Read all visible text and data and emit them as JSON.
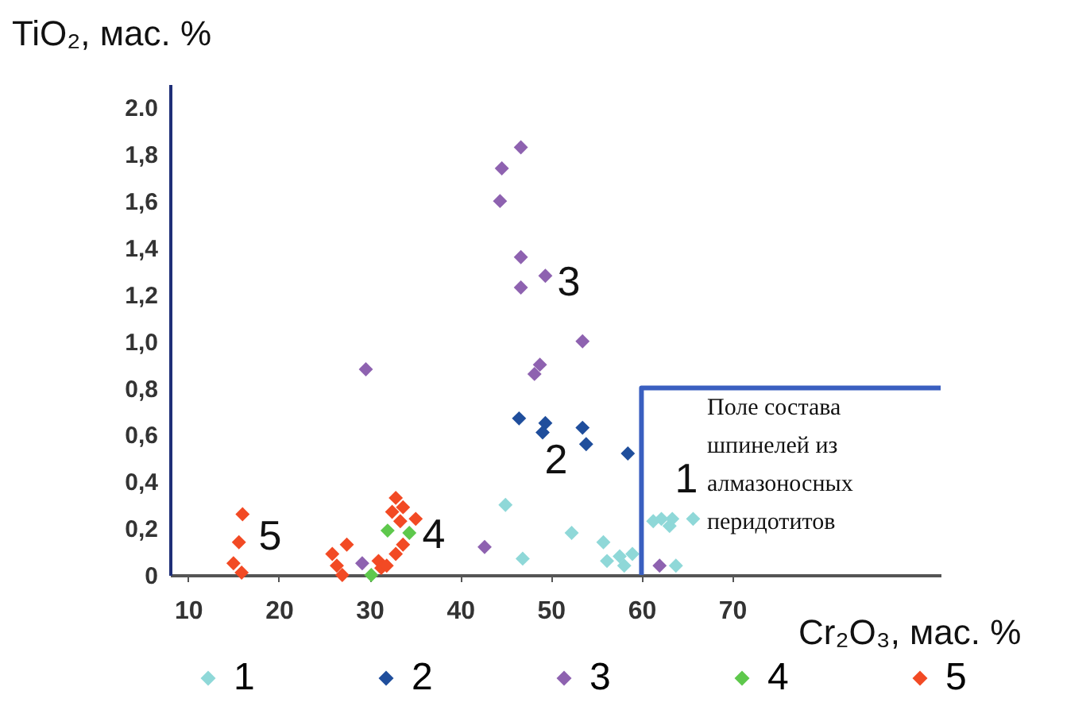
{
  "chart_data": {
    "type": "scatter",
    "xlabel": "Cr₂O₃, мас. %",
    "ylabel": "TiO₂, мас. %",
    "xlim": [
      8,
      93
    ],
    "ylim": [
      0,
      2.1
    ],
    "xticks": [
      10,
      20,
      30,
      40,
      50,
      60,
      70
    ],
    "yticks": [
      {
        "value": 0,
        "label": "0"
      },
      {
        "value": 0.2,
        "label": "0,2"
      },
      {
        "value": 0.4,
        "label": "0,4"
      },
      {
        "value": 0.6,
        "label": "0,6"
      },
      {
        "value": 0.8,
        "label": "0,8"
      },
      {
        "value": 1.0,
        "label": "1,0"
      },
      {
        "value": 1.2,
        "label": "1,2"
      },
      {
        "value": 1.4,
        "label": "1,4"
      },
      {
        "value": 1.6,
        "label": "1,6"
      },
      {
        "value": 1.8,
        "label": "1,8"
      },
      {
        "value": 2.0,
        "label": "2.0"
      }
    ],
    "marker": "diamond",
    "legend": "bottom",
    "series": [
      {
        "name": "1",
        "color": "#8fd8d8",
        "x": [
          45.0,
          46.9,
          52.3,
          55.8,
          56.2,
          57.6,
          59.0,
          58.1,
          62.2,
          63.4,
          63.1,
          65.7,
          63.8,
          61.3
        ],
        "values": [
          0.3,
          0.07,
          0.18,
          0.14,
          0.06,
          0.08,
          0.09,
          0.04,
          0.24,
          0.24,
          0.21,
          0.24,
          0.04,
          0.23
        ]
      },
      {
        "name": "2",
        "color": "#1f4e9c",
        "x": [
          46.5,
          49.4,
          49.1,
          53.5,
          53.9,
          58.5
        ],
        "values": [
          0.67,
          0.65,
          0.61,
          0.63,
          0.56,
          0.52
        ]
      },
      {
        "name": "3",
        "color": "#8e62b0",
        "x": [
          46.7,
          44.6,
          44.4,
          46.7,
          46.7,
          49.4,
          53.5,
          48.8,
          48.2,
          29.6,
          42.7,
          29.2,
          62.0
        ],
        "values": [
          1.83,
          1.74,
          1.6,
          1.36,
          1.23,
          1.28,
          1.0,
          0.9,
          0.86,
          0.88,
          0.12,
          0.05,
          0.04
        ]
      },
      {
        "name": "4",
        "color": "#5ec84c",
        "x": [
          32.0,
          34.4,
          30.2
        ],
        "values": [
          0.19,
          0.18,
          0.0
        ]
      },
      {
        "name": "5",
        "color": "#f24a24",
        "x": [
          16.0,
          15.6,
          15.0,
          15.9,
          27.5,
          25.9,
          26.4,
          27.0,
          31.0,
          31.3,
          32.9,
          32.5,
          33.7,
          35.1,
          33.7,
          32.9,
          31.9,
          33.4
        ],
        "values": [
          0.26,
          0.14,
          0.05,
          0.01,
          0.13,
          0.09,
          0.04,
          0.0,
          0.06,
          0.03,
          0.33,
          0.27,
          0.29,
          0.24,
          0.13,
          0.09,
          0.04,
          0.23
        ]
      },
      {
        "type": "line",
        "color": "#3a5fc0",
        "line_style": "solid",
        "marker": "none",
        "x": [
          60,
          60,
          93
        ],
        "values": [
          0,
          0.8,
          0.8
        ]
      }
    ],
    "annotations": [
      "Поле состава\nшпинелей из\nалмазоносных\nперидотитов"
    ]
  }
}
